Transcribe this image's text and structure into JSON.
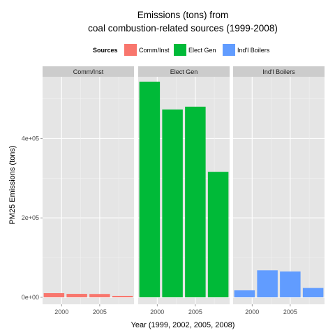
{
  "chart_data": {
    "type": "bar",
    "title_lines": [
      "Emissions (tons) from",
      "coal combustion-related sources (1999-2008)"
    ],
    "xlabel": "Year (1999, 2002, 2005, 2008)",
    "ylabel": "PM25 Emissions (tons)",
    "ylim": [
      0,
      550000
    ],
    "x": [
      1999,
      2002,
      2005,
      2008
    ],
    "xticks": [
      2000,
      2005
    ],
    "xtick_labels": [
      "2000",
      "2005"
    ],
    "xlim": [
      1997.5,
      2009.5
    ],
    "yticks": [
      0,
      200000,
      400000
    ],
    "ytick_labels": [
      "0e+00",
      "2e+05",
      "4e+05"
    ],
    "legend": {
      "title": "Sources",
      "position": "top"
    },
    "facets": [
      "Comm/Inst",
      "Elect Gen",
      "Ind'l Boilers"
    ],
    "series": [
      {
        "name": "Comm/Inst",
        "color": "#F8766D",
        "values": [
          10500,
          8700,
          8400,
          3600
        ]
      },
      {
        "name": "Elect Gen",
        "color": "#00BA38",
        "values": [
          543000,
          473000,
          480000,
          316000
        ]
      },
      {
        "name": "Ind'l Boilers",
        "color": "#619CFF",
        "values": [
          17500,
          68000,
          65000,
          23500
        ]
      }
    ],
    "grid": true,
    "panel_background": "#E5E5E5",
    "strip_background": "#CCCCCC"
  }
}
